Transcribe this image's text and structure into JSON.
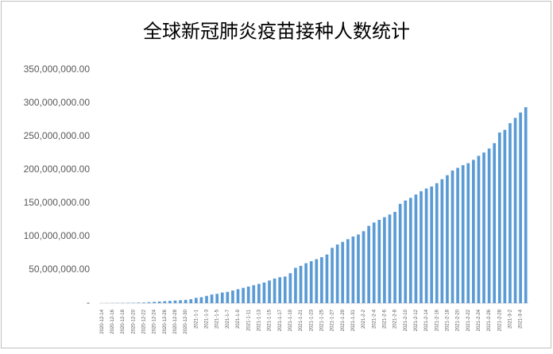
{
  "chart_data": {
    "type": "bar",
    "title": "全球新冠肺炎疫苗接种人数统计",
    "categories": [
      "2020-12-14",
      null,
      "2020-12-16",
      null,
      "2020-12-18",
      null,
      "2020-12-20",
      null,
      "2020-12-22",
      null,
      "2020-12-24",
      null,
      "2020-12-26",
      null,
      "2020-12-28",
      null,
      "2020-12-30",
      null,
      "2021-1-1",
      null,
      "2021-1-3",
      null,
      "2021-1-5",
      null,
      "2021-1-7",
      null,
      "2021-1-9",
      null,
      "2021-1-11",
      null,
      "2021-1-13",
      null,
      "2021-1-15",
      null,
      "2021-1-17",
      null,
      "2021-1-19",
      null,
      "2021-1-21",
      null,
      "2021-1-23",
      null,
      "2021-1-25",
      null,
      "2021-1-27",
      null,
      "2021-1-29",
      null,
      "2021-1-31",
      null,
      "2021-2-2",
      null,
      "2021-2-4",
      null,
      "2021-2-6",
      null,
      "2021-2-8",
      null,
      "2021-2-10",
      null,
      "2021-2-12",
      null,
      "2021-2-14",
      null,
      "2021-2-16",
      null,
      "2021-2-18",
      null,
      "2021-2-20",
      null,
      "2021-2-22",
      null,
      "2021-2-24",
      null,
      "2021-2-26",
      null,
      "2021-2-28",
      null,
      "2021-3-2",
      null,
      "2021-3-4",
      null
    ],
    "values": [
      10000,
      100000,
      200000,
      300000,
      400000,
      500000,
      600000,
      800000,
      1000000,
      1500000,
      2000000,
      2500000,
      3000000,
      3500000,
      4000000,
      4500000,
      5000000,
      6000000,
      8000000,
      9000000,
      11000000,
      13000000,
      14000000,
      16000000,
      17000000,
      19000000,
      21000000,
      23000000,
      25000000,
      27000000,
      29000000,
      31000000,
      34000000,
      37000000,
      39000000,
      40000000,
      45000000,
      53000000,
      56000000,
      60000000,
      63000000,
      66000000,
      69000000,
      73000000,
      83000000,
      88000000,
      92000000,
      96000000,
      100000000,
      103000000,
      108000000,
      116000000,
      121000000,
      125000000,
      129000000,
      133000000,
      137000000,
      149000000,
      154000000,
      158000000,
      163000000,
      168000000,
      172000000,
      175000000,
      180000000,
      186000000,
      192000000,
      199000000,
      203000000,
      207000000,
      210000000,
      215000000,
      221000000,
      226000000,
      232000000,
      240000000,
      256000000,
      260000000,
      270000000,
      278000000,
      286000000,
      294000000
    ],
    "color": "#5b9bd5",
    "ylim": [
      0,
      350000000
    ],
    "yticks": [
      {
        "value": 0,
        "label": "-"
      },
      {
        "value": 50000000,
        "label": "50,000,000.00"
      },
      {
        "value": 100000000,
        "label": "100,000,000.00"
      },
      {
        "value": 150000000,
        "label": "150,000,000.00"
      },
      {
        "value": 200000000,
        "label": "200,000,000.00"
      },
      {
        "value": 250000000,
        "label": "250,000,000.00"
      },
      {
        "value": 300000000,
        "label": "300,000,000.00"
      },
      {
        "value": 350000000,
        "label": "350,000,000.00"
      }
    ],
    "grid": false
  }
}
